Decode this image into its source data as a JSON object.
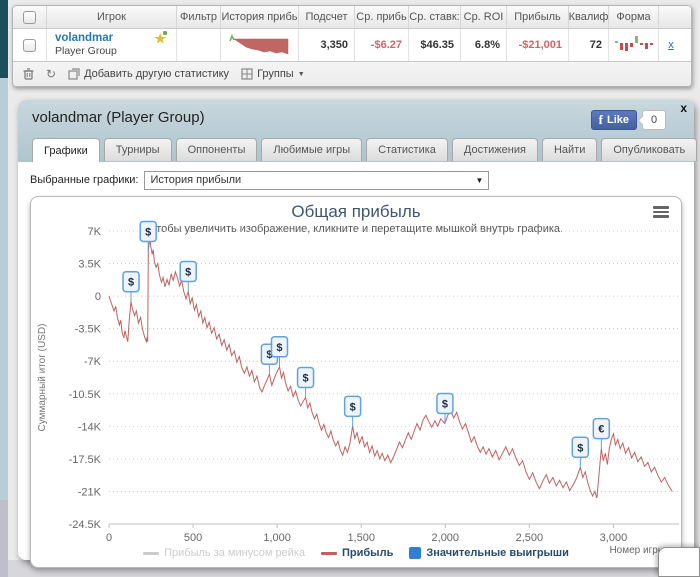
{
  "table": {
    "columns": [
      "",
      "Игрок",
      "Фильтр",
      "История прибь",
      "Подсчет",
      "Ср. прибь",
      "Ср. ставк:",
      "Ср. ROI",
      "Прибыль",
      "Квалиф",
      "Форма",
      ""
    ],
    "row": {
      "player": "volandmar",
      "group": "Player Group",
      "count": "3,350",
      "avg_profit": "-$6.27",
      "avg_stake": "$46.35",
      "avg_roi": "6.8%",
      "profit": "-$21,001",
      "qualified": "72",
      "remove_label": "x"
    },
    "toolbar": {
      "add_stat_label": "Добавить другую статистику",
      "groups_label": "Группы",
      "groups_arrow": "▼",
      "refresh_glyph": "↻"
    }
  },
  "panel": {
    "title": "volandmar (Player Group)",
    "close_label": "x",
    "like_label": "Like",
    "like_f": "f",
    "like_count": "0",
    "tabs": [
      {
        "label": "Графики",
        "active": true
      },
      {
        "label": "Турниры",
        "active": false
      },
      {
        "label": "Оппоненты",
        "active": false
      },
      {
        "label": "Любимые игры",
        "active": false
      },
      {
        "label": "Статистика",
        "active": false
      },
      {
        "label": "Достижения",
        "active": false
      },
      {
        "label": "Найти",
        "active": false
      },
      {
        "label": "Опубликовать",
        "active": false
      }
    ],
    "selector_label": "Выбранные графики:",
    "selector_value": "История прибыли",
    "selector_arrow": "▼"
  },
  "chart_data": {
    "type": "line",
    "title": "Общая прибыль",
    "subtitle": "Чтобы увеличить изображение, кликните и перетащите мышкой внутрь графика.",
    "xlabel": "Номер игры",
    "ylabel": "Суммарный итог (USD)",
    "xlim": [
      0,
      3390
    ],
    "ylim": [
      -24500,
      7000
    ],
    "grid": true,
    "legend_position": "bottom",
    "x_ticks": [
      0,
      500,
      1000,
      1500,
      2000,
      2500,
      3000
    ],
    "x_tick_labels": [
      "0",
      "500",
      "1,000",
      "1,500",
      "2,000",
      "2,500",
      "3,000"
    ],
    "y_ticks": [
      7000,
      3500,
      0,
      -3500,
      -7000,
      -10500,
      -14000,
      -17500,
      -21000,
      -24500
    ],
    "y_tick_labels": [
      "7K",
      "3.5K",
      "0",
      "-3.5K",
      "-7K",
      "-10.5K",
      "-14K",
      "-17.5K",
      "-21K",
      "-24.5K"
    ],
    "legend": [
      {
        "label": "Прибыль за минусом рейка",
        "type": "line",
        "color": "#cccccc",
        "text_color": "#cccccc",
        "hidden": true
      },
      {
        "label": "Прибыль",
        "type": "line",
        "color": "#bc6360",
        "text_color": "#274b6d",
        "hidden": false
      },
      {
        "label": "Значительные выигрыши",
        "type": "flag",
        "color": "#2f7ed8",
        "text_color": "#274b6d",
        "hidden": false
      }
    ],
    "series": [
      {
        "name": "Прибыль за минусом рейка",
        "visible": false,
        "color": "#cccccc",
        "points": []
      },
      {
        "name": "Прибыль",
        "visible": true,
        "color": "#bc6360",
        "points": [
          [
            0,
            0
          ],
          [
            15,
            -800
          ],
          [
            30,
            -1600
          ],
          [
            40,
            -1100
          ],
          [
            50,
            -2300
          ],
          [
            62,
            -3100
          ],
          [
            70,
            -2600
          ],
          [
            78,
            -3900
          ],
          [
            88,
            -4500
          ],
          [
            95,
            -3700
          ],
          [
            103,
            -4300
          ],
          [
            112,
            -4900
          ],
          [
            120,
            -2600
          ],
          [
            131,
            -600
          ],
          [
            140,
            -1400
          ],
          [
            152,
            -2100
          ],
          [
            163,
            -1600
          ],
          [
            175,
            -2900
          ],
          [
            188,
            -2300
          ],
          [
            200,
            -3600
          ],
          [
            212,
            -4400
          ],
          [
            222,
            -4900
          ],
          [
            227,
            -4400
          ],
          [
            230,
            -4900
          ],
          [
            234,
            4800
          ],
          [
            242,
            6200
          ],
          [
            250,
            5200
          ],
          [
            257,
            4500
          ],
          [
            263,
            5000
          ],
          [
            270,
            3700
          ],
          [
            280,
            3100
          ],
          [
            290,
            3500
          ],
          [
            300,
            2300
          ],
          [
            312,
            1500
          ],
          [
            322,
            2000
          ],
          [
            333,
            1000
          ],
          [
            345,
            1800
          ],
          [
            357,
            1200
          ],
          [
            370,
            2400
          ],
          [
            382,
            1700
          ],
          [
            395,
            2600
          ],
          [
            408,
            1900
          ],
          [
            420,
            1100
          ],
          [
            432,
            1700
          ],
          [
            445,
            500
          ],
          [
            458,
            -300
          ],
          [
            471,
            500
          ],
          [
            483,
            -800
          ],
          [
            495,
            -200
          ],
          [
            508,
            -1500
          ],
          [
            520,
            -900
          ],
          [
            533,
            -2200
          ],
          [
            546,
            -1600
          ],
          [
            558,
            -2900
          ],
          [
            570,
            -2300
          ],
          [
            583,
            -3400
          ],
          [
            596,
            -2800
          ],
          [
            610,
            -4000
          ],
          [
            625,
            -3400
          ],
          [
            640,
            -4600
          ],
          [
            655,
            -4100
          ],
          [
            670,
            -5300
          ],
          [
            685,
            -4700
          ],
          [
            700,
            -5800
          ],
          [
            715,
            -5200
          ],
          [
            730,
            -6400
          ],
          [
            745,
            -5900
          ],
          [
            760,
            -7100
          ],
          [
            775,
            -6500
          ],
          [
            790,
            -7700
          ],
          [
            805,
            -8300
          ],
          [
            820,
            -7600
          ],
          [
            835,
            -8600
          ],
          [
            850,
            -8000
          ],
          [
            865,
            -9200
          ],
          [
            880,
            -8600
          ],
          [
            895,
            -9800
          ],
          [
            910,
            -10300
          ],
          [
            925,
            -9600
          ],
          [
            940,
            -9000
          ],
          [
            954,
            -8400
          ],
          [
            968,
            -9600
          ],
          [
            980,
            -9000
          ],
          [
            995,
            -8300
          ],
          [
            1014,
            -7600
          ],
          [
            1026,
            -8800
          ],
          [
            1038,
            -8200
          ],
          [
            1050,
            -9300
          ],
          [
            1065,
            -10200
          ],
          [
            1080,
            -9700
          ],
          [
            1095,
            -10800
          ],
          [
            1110,
            -10200
          ],
          [
            1125,
            -11200
          ],
          [
            1140,
            -11800
          ],
          [
            1155,
            -11300
          ],
          [
            1169,
            -10900
          ],
          [
            1182,
            -12000
          ],
          [
            1195,
            -11500
          ],
          [
            1208,
            -12500
          ],
          [
            1222,
            -13200
          ],
          [
            1236,
            -12700
          ],
          [
            1250,
            -13700
          ],
          [
            1264,
            -14400
          ],
          [
            1278,
            -13800
          ],
          [
            1292,
            -14700
          ],
          [
            1306,
            -15200
          ],
          [
            1320,
            -14500
          ],
          [
            1334,
            -15500
          ],
          [
            1348,
            -16100
          ],
          [
            1362,
            -15600
          ],
          [
            1376,
            -16600
          ],
          [
            1390,
            -17100
          ],
          [
            1404,
            -16200
          ],
          [
            1418,
            -16800
          ],
          [
            1432,
            -15900
          ],
          [
            1449,
            -14000
          ],
          [
            1462,
            -15300
          ],
          [
            1475,
            -14700
          ],
          [
            1490,
            -15800
          ],
          [
            1505,
            -15100
          ],
          [
            1520,
            -16200
          ],
          [
            1535,
            -15700
          ],
          [
            1550,
            -16800
          ],
          [
            1565,
            -16100
          ],
          [
            1580,
            -17200
          ],
          [
            1595,
            -16600
          ],
          [
            1610,
            -17500
          ],
          [
            1625,
            -16900
          ],
          [
            1640,
            -17700
          ],
          [
            1658,
            -17100
          ],
          [
            1675,
            -17900
          ],
          [
            1692,
            -17300
          ],
          [
            1710,
            -16500
          ],
          [
            1728,
            -15700
          ],
          [
            1745,
            -16300
          ],
          [
            1762,
            -15500
          ],
          [
            1780,
            -14700
          ],
          [
            1798,
            -15400
          ],
          [
            1815,
            -14500
          ],
          [
            1832,
            -13700
          ],
          [
            1850,
            -14400
          ],
          [
            1868,
            -13300
          ],
          [
            1885,
            -12800
          ],
          [
            1902,
            -13500
          ],
          [
            1920,
            -14100
          ],
          [
            1938,
            -13400
          ],
          [
            1955,
            -14000
          ],
          [
            1972,
            -13200
          ],
          [
            1998,
            -13700
          ],
          [
            2015,
            -12800
          ],
          [
            2032,
            -12300
          ],
          [
            2050,
            -13100
          ],
          [
            2068,
            -12500
          ],
          [
            2085,
            -13500
          ],
          [
            2102,
            -14300
          ],
          [
            2120,
            -13700
          ],
          [
            2138,
            -14700
          ],
          [
            2155,
            -15700
          ],
          [
            2172,
            -15100
          ],
          [
            2190,
            -16100
          ],
          [
            2208,
            -16800
          ],
          [
            2225,
            -16200
          ],
          [
            2242,
            -17000
          ],
          [
            2260,
            -16400
          ],
          [
            2280,
            -17300
          ],
          [
            2300,
            -16600
          ],
          [
            2320,
            -17600
          ],
          [
            2340,
            -16900
          ],
          [
            2360,
            -16200
          ],
          [
            2380,
            -17100
          ],
          [
            2400,
            -16400
          ],
          [
            2420,
            -17400
          ],
          [
            2440,
            -18200
          ],
          [
            2460,
            -17700
          ],
          [
            2480,
            -18900
          ],
          [
            2500,
            -19700
          ],
          [
            2520,
            -19000
          ],
          [
            2540,
            -20000
          ],
          [
            2560,
            -20700
          ],
          [
            2580,
            -19900
          ],
          [
            2600,
            -19200
          ],
          [
            2620,
            -20100
          ],
          [
            2640,
            -19500
          ],
          [
            2660,
            -20400
          ],
          [
            2680,
            -19800
          ],
          [
            2700,
            -20600
          ],
          [
            2720,
            -20000
          ],
          [
            2740,
            -20900
          ],
          [
            2760,
            -20300
          ],
          [
            2780,
            -19600
          ],
          [
            2803,
            -18400
          ],
          [
            2818,
            -19500
          ],
          [
            2833,
            -18900
          ],
          [
            2848,
            -20100
          ],
          [
            2862,
            -20900
          ],
          [
            2876,
            -21500
          ],
          [
            2890,
            -21000
          ],
          [
            2902,
            -21700
          ],
          [
            2928,
            -16400
          ],
          [
            2940,
            -17700
          ],
          [
            2952,
            -16900
          ],
          [
            2964,
            -18100
          ],
          [
            2976,
            -16300
          ],
          [
            2988,
            -15400
          ],
          [
            3000,
            -14800
          ],
          [
            3012,
            -16000
          ],
          [
            3026,
            -15400
          ],
          [
            3040,
            -16400
          ],
          [
            3056,
            -15800
          ],
          [
            3072,
            -16900
          ],
          [
            3090,
            -16300
          ],
          [
            3108,
            -17400
          ],
          [
            3126,
            -16800
          ],
          [
            3145,
            -17800
          ],
          [
            3165,
            -17300
          ],
          [
            3185,
            -18300
          ],
          [
            3205,
            -17900
          ],
          [
            3225,
            -18900
          ],
          [
            3245,
            -18400
          ],
          [
            3265,
            -19300
          ],
          [
            3285,
            -20000
          ],
          [
            3305,
            -19500
          ],
          [
            3325,
            -20300
          ],
          [
            3350,
            -21001
          ]
        ]
      }
    ],
    "flags": [
      {
        "x": 131,
        "y": -600,
        "label": "$"
      },
      {
        "x": 233,
        "y": 4800,
        "label": "$"
      },
      {
        "x": 471,
        "y": 500,
        "label": "$"
      },
      {
        "x": 954,
        "y": -8400,
        "label": "$"
      },
      {
        "x": 1014,
        "y": -7600,
        "label": "$"
      },
      {
        "x": 1169,
        "y": -10900,
        "label": "$"
      },
      {
        "x": 1449,
        "y": -14000,
        "label": "$"
      },
      {
        "x": 1998,
        "y": -13700,
        "label": "$"
      },
      {
        "x": 2803,
        "y": -18400,
        "label": "$"
      },
      {
        "x": 2928,
        "y": -16400,
        "label": "€"
      }
    ]
  },
  "colors": {
    "profit_line": "#bc6360",
    "flag_border": "#63a1d8",
    "flag_fill": "#edf4fb",
    "legend_blue": "#2f7ed8",
    "negative_text": "#cc6666",
    "panel_header": "#b8cbd3",
    "link_blue": "#2879ab"
  }
}
